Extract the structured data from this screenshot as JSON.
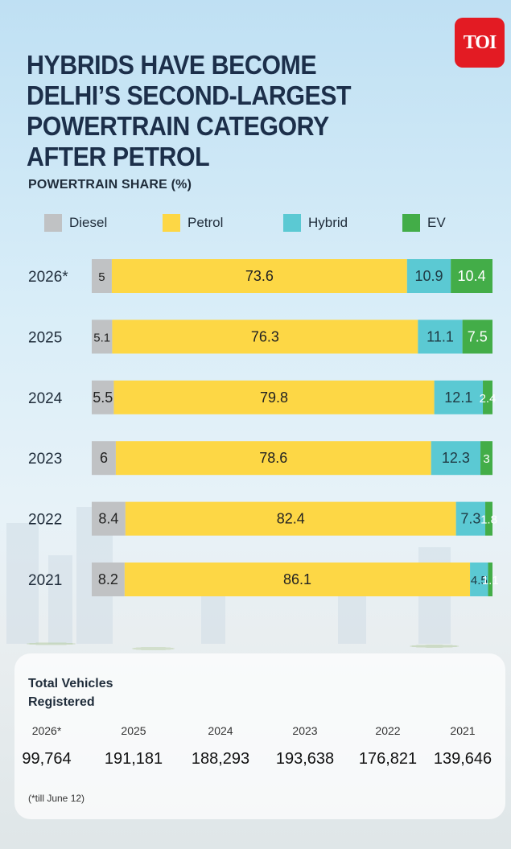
{
  "brand": {
    "logo_text": "TOI"
  },
  "header": {
    "title": "HYBRIDS HAVE BECOME DELHI’S SECOND-LARGEST POWERTRAIN CATEGORY AFTER PETROL"
  },
  "chart_data": {
    "type": "bar",
    "orientation": "horizontal",
    "stacked": true,
    "title": "POWERTRAIN SHARE (%)",
    "categories": [
      "2026*",
      "2025",
      "2024",
      "2023",
      "2022",
      "2021"
    ],
    "series": [
      {
        "name": "Diesel",
        "color": "#c0c2c4",
        "values": [
          5,
          5.1,
          5.5,
          6,
          8.4,
          8.2
        ]
      },
      {
        "name": "Petrol",
        "color": "#fdd745",
        "values": [
          73.6,
          76.3,
          79.8,
          78.6,
          82.4,
          86.1
        ]
      },
      {
        "name": "Hybrid",
        "color": "#5bc9d3",
        "values": [
          10.9,
          11.1,
          12.1,
          12.3,
          7.3,
          4.5
        ]
      },
      {
        "name": "EV",
        "color": "#43ad48",
        "values": [
          10.4,
          7.5,
          2.4,
          3,
          1.8,
          1.1
        ]
      }
    ],
    "data_labels": true,
    "legend_position": "top"
  },
  "registrations": {
    "title": "Total Vehicles Registered",
    "years": [
      "2026*",
      "2025",
      "2024",
      "2023",
      "2022",
      "2021"
    ],
    "values": [
      "99,764",
      "191,181",
      "188,293",
      "193,638",
      "176,821",
      "139,646"
    ],
    "footnote": "(*till June 12)"
  }
}
